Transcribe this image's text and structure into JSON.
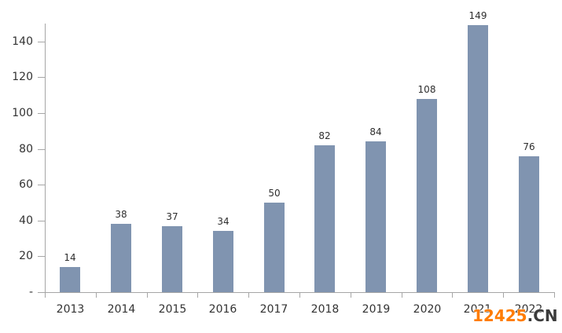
{
  "watermark": {
    "brand": "12425",
    "suffix": ".CN",
    "brand_color": "#ff7c00",
    "suffix_color": "#3b3b3b"
  },
  "chart_data": {
    "type": "bar",
    "title": "",
    "xlabel": "",
    "ylabel": "",
    "categories": [
      "2013",
      "2014",
      "2015",
      "2016",
      "2017",
      "2018",
      "2019",
      "2020",
      "2021",
      "2022"
    ],
    "values": [
      14,
      38,
      37,
      34,
      50,
      82,
      84,
      108,
      149,
      76
    ],
    "ylim": [
      0,
      150
    ],
    "ytick_interval": 20,
    "ytick_labels": [
      "-",
      "20",
      "40",
      "60",
      "80",
      "100",
      "120",
      "140"
    ],
    "grid": false,
    "legend": false,
    "data_labels": true,
    "bar_color": "#8094b0",
    "axis_color": "#a6a6a6",
    "label_color": "#333333"
  }
}
